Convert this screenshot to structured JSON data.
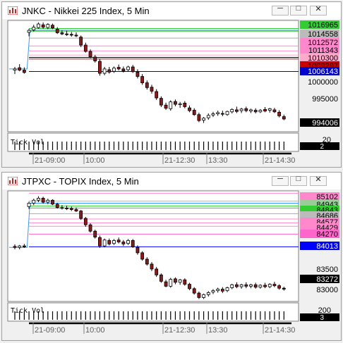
{
  "windows": [
    {
      "title": "JNKC - Nikkei 225 Index, 5 Min",
      "controls": {
        "minimize": "─",
        "maximize": "□",
        "close": "✕"
      },
      "price_labels": [
        {
          "text": "1016965",
          "bg": "#33cc33",
          "fg": "#000000"
        },
        {
          "text": "1014558",
          "bg": "#bbbbbb",
          "fg": "#000000"
        },
        {
          "text": "1012572",
          "bg": "#ff88cc",
          "fg": "#000000"
        },
        {
          "text": "1011343",
          "bg": "#ff88cc",
          "fg": "#000000"
        },
        {
          "text": "1010300",
          "bg": "#ffaacc",
          "fg": "#000000"
        },
        {
          "text": "1009297",
          "bg": "#cc0000",
          "fg": "#000000"
        },
        {
          "text": "1006143",
          "bg": "#0000cc",
          "fg": "#ffffff"
        },
        {
          "text": "1000000",
          "bg": "",
          "fg": "#000000"
        },
        {
          "text": "995000",
          "bg": "",
          "fg": "#000000"
        },
        {
          "text": "994006",
          "bg": "#000000",
          "fg": "#ffffff"
        }
      ],
      "volume_label": "Tick Vol",
      "volume_scale": "20",
      "volume_current": "2",
      "time_labels": [
        "21-09:00",
        "10:00",
        "21-12:30",
        "13:30",
        "21-14:30"
      ]
    },
    {
      "title": "JTPXC - TOPIX Index, 5 Min",
      "controls": {
        "minimize": "─",
        "maximize": "□",
        "close": "✕"
      },
      "price_labels": [
        {
          "text": "85102",
          "bg": "#ff88cc",
          "fg": "#000000"
        },
        {
          "text": "84943",
          "bg": "#99cc99",
          "fg": "#000000"
        },
        {
          "text": "84843",
          "bg": "#33cc33",
          "fg": "#000000"
        },
        {
          "text": "84686",
          "bg": "#bbbbbb",
          "fg": "#000000"
        },
        {
          "text": "84577",
          "bg": "#ff88cc",
          "fg": "#000000"
        },
        {
          "text": "84429",
          "bg": "#ff88cc",
          "fg": "#000000"
        },
        {
          "text": "84270",
          "bg": "#ff66cc",
          "fg": "#000000"
        },
        {
          "text": "84013",
          "bg": "#0000ff",
          "fg": "#ffffff"
        },
        {
          "text": "83500",
          "bg": "",
          "fg": "#000000"
        },
        {
          "text": "83272",
          "bg": "#000000",
          "fg": "#ffffff"
        },
        {
          "text": "83000",
          "bg": "",
          "fg": "#000000"
        }
      ],
      "volume_label": "Tick Vol",
      "volume_scale": "200",
      "volume_current": "3",
      "time_labels": [
        "21-09:00",
        "10:00",
        "21-12:30",
        "13:30",
        "21-14:30"
      ]
    }
  ],
  "chart_data": [
    {
      "type": "candlestick",
      "title": "JNKC - Nikkei 225 Index, 5 Min",
      "ylim": [
        991000,
        1019000
      ],
      "ticks": [
        1000000,
        995000
      ],
      "x_labels": [
        "21-09:00",
        "10:00",
        "21-12:30",
        "13:30",
        "21-14:30"
      ],
      "candles": [
        [
          1006500,
          1007300,
          1005500,
          1006800
        ],
        [
          1007100,
          1008000,
          1006200,
          1006500
        ],
        [
          1006500,
          1007200,
          1005600,
          1005900
        ],
        [
          1016000,
          1016900,
          1015000,
          1016500
        ],
        [
          1016600,
          1017900,
          1016200,
          1017300
        ],
        [
          1017200,
          1018500,
          1016900,
          1018100
        ],
        [
          1017900,
          1018500,
          1016900,
          1017300
        ],
        [
          1017200,
          1018300,
          1016800,
          1018000
        ],
        [
          1017800,
          1018200,
          1016800,
          1017100
        ],
        [
          1016800,
          1017300,
          1015600,
          1015900
        ],
        [
          1015900,
          1016500,
          1015300,
          1015600
        ],
        [
          1015600,
          1016400,
          1015100,
          1015500
        ],
        [
          1015500,
          1016100,
          1014900,
          1015300
        ],
        [
          1015300,
          1016000,
          1014800,
          1015100
        ],
        [
          1014800,
          1015200,
          1012300,
          1012800
        ],
        [
          1012800,
          1013400,
          1010900,
          1011200
        ],
        [
          1011200,
          1011700,
          1009500,
          1009800
        ],
        [
          1009800,
          1010300,
          1008400,
          1008800
        ],
        [
          1008700,
          1009300,
          1005100,
          1005700
        ],
        [
          1005700,
          1007300,
          1005200,
          1006800
        ],
        [
          1006600,
          1007300,
          1005600,
          1006000
        ],
        [
          1006200,
          1007400,
          1005800,
          1007000
        ],
        [
          1007200,
          1007900,
          1006400,
          1006800
        ],
        [
          1006800,
          1007400,
          1005900,
          1006300
        ],
        [
          1006600,
          1007600,
          1006100,
          1007300
        ],
        [
          1007300,
          1007800,
          1005800,
          1006100
        ],
        [
          1006000,
          1006700,
          1004400,
          1004900
        ],
        [
          1004900,
          1005500,
          1002800,
          1003300
        ],
        [
          1003300,
          1003900,
          1001600,
          1002100
        ],
        [
          1002200,
          1002800,
          1000600,
          1001200
        ],
        [
          1001100,
          1001700,
          999000,
          999500
        ],
        [
          999400,
          999900,
          997200,
          997700
        ],
        [
          997700,
          998300,
          996500,
          996900
        ],
        [
          996800,
          998900,
          996300,
          998500
        ],
        [
          998600,
          999100,
          997400,
          997900
        ],
        [
          997800,
          998500,
          997000,
          998000
        ],
        [
          998200,
          998700,
          996900,
          997300
        ],
        [
          997000,
          997600,
          995900,
          996300
        ],
        [
          996400,
          996900,
          995000,
          995300
        ],
        [
          995300,
          995800,
          993400,
          993800
        ],
        [
          993900,
          994700,
          993200,
          994400
        ],
        [
          994500,
          995600,
          994000,
          995100
        ],
        [
          995200,
          996000,
          994700,
          995500
        ],
        [
          995500,
          996300,
          995000,
          995800
        ],
        [
          995600,
          996300,
          994900,
          995400
        ],
        [
          995300,
          996300,
          995000,
          996100
        ],
        [
          996000,
          996900,
          995600,
          996600
        ],
        [
          996500,
          997300,
          995700,
          996100
        ],
        [
          996300,
          997000,
          995700,
          996700
        ],
        [
          996800,
          997300,
          995900,
          996300
        ],
        [
          996200,
          996800,
          995700,
          996500
        ],
        [
          996400,
          996900,
          995600,
          996000
        ],
        [
          996000,
          996700,
          995700,
          996400
        ],
        [
          996600,
          997200,
          995900,
          996200
        ],
        [
          996400,
          997000,
          995800,
          996800
        ],
        [
          996500,
          997000,
          995700,
          996000
        ],
        [
          995900,
          996400,
          994600,
          995000
        ],
        [
          994800,
          995300,
          993900,
          994200
        ]
      ],
      "levels": [
        {
          "price": 1016965,
          "color": "#33cc33"
        },
        {
          "price": 1016300,
          "color": "#33cc33"
        },
        {
          "price": 1014558,
          "color": "#aaaaaa"
        },
        {
          "price": 1012572,
          "color": "#ff88cc"
        },
        {
          "price": 1011343,
          "color": "#ff88cc"
        },
        {
          "price": 1010300,
          "color": "#ffaacc"
        },
        {
          "price": 1009700,
          "color": "#000000"
        },
        {
          "price": 1009297,
          "color": "#cc0000"
        },
        {
          "price": 1006143,
          "color": "#0000cc"
        }
      ]
    },
    {
      "type": "candlestick",
      "title": "JTPXC - TOPIX Index, 5 Min",
      "ylim": [
        82900,
        85150
      ],
      "ticks": [
        83500,
        83000
      ],
      "x_labels": [
        "21-09:00",
        "10:00",
        "21-12:30",
        "13:30",
        "21-14:30"
      ],
      "candles": [
        [
          84020,
          84060,
          83960,
          84000
        ],
        [
          84000,
          84050,
          83960,
          84030
        ],
        [
          84030,
          84070,
          83990,
          84010
        ],
        [
          84830,
          84930,
          84780,
          84900
        ],
        [
          84900,
          84990,
          84860,
          84960
        ],
        [
          84960,
          85040,
          84920,
          85000
        ],
        [
          85000,
          85030,
          84890,
          84920
        ],
        [
          84920,
          84990,
          84880,
          84960
        ],
        [
          84960,
          84980,
          84860,
          84880
        ],
        [
          84880,
          84910,
          84790,
          84810
        ],
        [
          84810,
          84860,
          84770,
          84800
        ],
        [
          84800,
          84850,
          84760,
          84790
        ],
        [
          84790,
          84830,
          84740,
          84770
        ],
        [
          84770,
          84810,
          84720,
          84740
        ],
        [
          84740,
          84760,
          84560,
          84590
        ],
        [
          84590,
          84620,
          84420,
          84460
        ],
        [
          84460,
          84490,
          84300,
          84330
        ],
        [
          84330,
          84360,
          84180,
          84210
        ],
        [
          84200,
          84240,
          83990,
          84030
        ],
        [
          84030,
          84180,
          84000,
          84150
        ],
        [
          84140,
          84180,
          84040,
          84070
        ],
        [
          84080,
          84170,
          84050,
          84140
        ],
        [
          84150,
          84200,
          84080,
          84110
        ],
        [
          84110,
          84150,
          84030,
          84070
        ],
        [
          84080,
          84170,
          84050,
          84140
        ],
        [
          84140,
          84170,
          83990,
          84010
        ],
        [
          84000,
          84040,
          83850,
          83890
        ],
        [
          83890,
          83920,
          83730,
          83760
        ],
        [
          83760,
          83800,
          83630,
          83660
        ],
        [
          83660,
          83700,
          83520,
          83560
        ],
        [
          83560,
          83600,
          83400,
          83440
        ],
        [
          83440,
          83470,
          83280,
          83310
        ],
        [
          83300,
          83340,
          83190,
          83210
        ],
        [
          83210,
          83380,
          83180,
          83350
        ],
        [
          83360,
          83390,
          83250,
          83290
        ],
        [
          83290,
          83360,
          83240,
          83340
        ],
        [
          83340,
          83370,
          83220,
          83250
        ],
        [
          83250,
          83280,
          83130,
          83160
        ],
        [
          83160,
          83190,
          83040,
          83070
        ],
        [
          83070,
          83100,
          82950,
          82980
        ],
        [
          82980,
          83060,
          82950,
          83040
        ],
        [
          83040,
          83110,
          83000,
          83080
        ],
        [
          83090,
          83150,
          83050,
          83120
        ],
        [
          83120,
          83180,
          83080,
          83150
        ],
        [
          83150,
          83190,
          83070,
          83110
        ],
        [
          83120,
          83200,
          83090,
          83180
        ],
        [
          83180,
          83260,
          83150,
          83240
        ],
        [
          83240,
          83290,
          83170,
          83200
        ],
        [
          83200,
          83260,
          83160,
          83240
        ],
        [
          83240,
          83290,
          83170,
          83210
        ],
        [
          83210,
          83260,
          83170,
          83240
        ],
        [
          83240,
          83280,
          83160,
          83190
        ],
        [
          83190,
          83250,
          83160,
          83230
        ],
        [
          83230,
          83280,
          83170,
          83200
        ],
        [
          83200,
          83270,
          83170,
          83250
        ],
        [
          83250,
          83300,
          83190,
          83220
        ],
        [
          83220,
          83250,
          83140,
          83170
        ],
        [
          83170,
          83200,
          83120,
          83150
        ]
      ],
      "levels": [
        {
          "price": 85102,
          "color": "#ff88cc"
        },
        {
          "price": 84943,
          "color": "#99cc99"
        },
        {
          "price": 84843,
          "color": "#33cc33"
        },
        {
          "price": 84800,
          "color": "#33cc33"
        },
        {
          "price": 84686,
          "color": "#aaaaaa"
        },
        {
          "price": 84577,
          "color": "#ff88cc"
        },
        {
          "price": 84500,
          "color": "#ff88cc"
        },
        {
          "price": 84429,
          "color": "#ff88cc"
        },
        {
          "price": 84270,
          "color": "#ff66cc"
        },
        {
          "price": 84013,
          "color": "#0000ff"
        }
      ]
    }
  ]
}
